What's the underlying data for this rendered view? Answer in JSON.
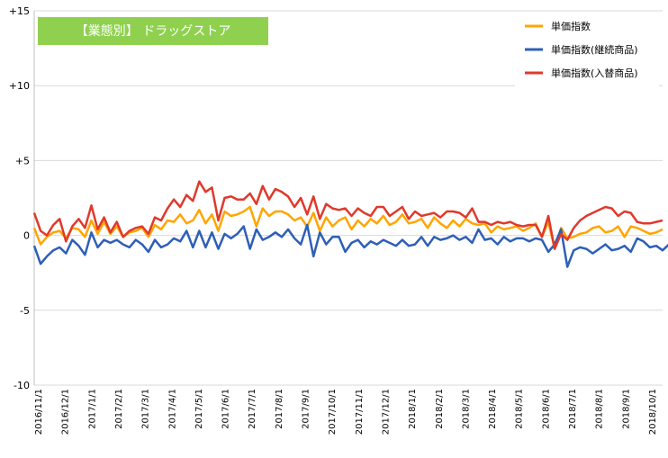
{
  "chart_data": {
    "type": "line",
    "title": "【業態別】 ドラッグストア",
    "title_bg": "#8fd14f",
    "ylim": [
      -10,
      15
    ],
    "yticks": [
      15,
      10,
      5,
      0,
      -5,
      -10
    ],
    "ytick_labels": [
      "+15",
      "+10",
      "+5",
      "0",
      "-5",
      "-10"
    ],
    "grid": "horizontal",
    "legend_position": "top-right",
    "xtick_labels": [
      "2016/11/1",
      "2016/12/1",
      "2017/1/1",
      "2017/2/1",
      "2017/3/1",
      "2017/4/1",
      "2017/5/1",
      "2017/6/1",
      "2017/7/1",
      "2017/8/1",
      "2017/9/1",
      "2017/10/1",
      "2017/11/1",
      "2017/12/1",
      "2018/1/1",
      "2018/2/1",
      "2018/3/1",
      "2018/4/1",
      "2018/5/1",
      "2018/6/1",
      "2018/7/1",
      "2018/8/1",
      "2018/9/1",
      "2018/10/1"
    ],
    "series": [
      {
        "name": "単価指数",
        "color": "#ffa500",
        "values": [
          0.5,
          -0.6,
          -0.1,
          0.2,
          0.3,
          -0.2,
          0.5,
          0.4,
          -0.1,
          1.0,
          0.1,
          0.9,
          0.1,
          0.6,
          -0.1,
          0.2,
          0.3,
          0.5,
          -0.1,
          0.7,
          0.4,
          1.0,
          0.9,
          1.4,
          0.8,
          1.0,
          1.7,
          0.8,
          1.4,
          0.3,
          1.6,
          1.3,
          1.4,
          1.6,
          1.9,
          0.6,
          1.8,
          1.3,
          1.6,
          1.6,
          1.4,
          1.0,
          1.2,
          0.6,
          1.5,
          0.3,
          1.2,
          0.6,
          1.0,
          1.2,
          0.4,
          1.0,
          0.6,
          1.1,
          0.8,
          1.3,
          0.7,
          0.9,
          1.4,
          0.8,
          0.9,
          1.1,
          0.5,
          1.2,
          0.8,
          0.5,
          1.0,
          0.6,
          1.1,
          0.8,
          0.7,
          0.8,
          0.2,
          0.6,
          0.4,
          0.5,
          0.6,
          0.3,
          0.5,
          0.8,
          -0.1,
          0.9,
          -0.9,
          0.5,
          -0.2,
          -0.1,
          0.1,
          0.2,
          0.5,
          0.6,
          0.2,
          0.3,
          0.6,
          -0.1,
          0.6,
          0.5,
          0.3,
          0.1,
          0.2,
          0.4
        ]
      },
      {
        "name": "単価指数(継続商品)",
        "color": "#2e5fb7",
        "values": [
          -0.7,
          -1.9,
          -1.4,
          -1.0,
          -0.8,
          -1.2,
          -0.3,
          -0.7,
          -1.3,
          0.2,
          -0.8,
          -0.3,
          -0.5,
          -0.3,
          -0.6,
          -0.8,
          -0.3,
          -0.6,
          -1.1,
          -0.3,
          -0.8,
          -0.6,
          -0.2,
          -0.4,
          0.3,
          -0.8,
          0.3,
          -0.8,
          0.2,
          -0.9,
          0.1,
          -0.2,
          0.1,
          0.6,
          -0.9,
          0.4,
          -0.3,
          -0.1,
          0.2,
          -0.1,
          0.4,
          -0.2,
          -0.6,
          0.7,
          -1.4,
          0.2,
          -0.6,
          -0.1,
          -0.1,
          -1.1,
          -0.5,
          -0.3,
          -0.8,
          -0.4,
          -0.6,
          -0.3,
          -0.5,
          -0.7,
          -0.3,
          -0.7,
          -0.6,
          -0.1,
          -0.7,
          -0.1,
          -0.3,
          -0.2,
          0.0,
          -0.3,
          -0.1,
          -0.5,
          0.4,
          -0.3,
          -0.2,
          -0.6,
          -0.1,
          -0.4,
          -0.2,
          -0.2,
          -0.4,
          -0.2,
          -0.3,
          -1.1,
          -0.6,
          0.4,
          -2.1,
          -1.0,
          -0.8,
          -0.9,
          -1.2,
          -0.9,
          -0.6,
          -1.0,
          -0.9,
          -0.7,
          -1.1,
          -0.2,
          -0.4,
          -0.8,
          -0.7,
          -1.0,
          -0.6
        ]
      },
      {
        "name": "単価指数(入替商品)",
        "color": "#e0392b",
        "values": [
          1.5,
          0.3,
          0.0,
          0.7,
          1.1,
          -0.4,
          0.6,
          1.1,
          0.5,
          2.0,
          0.4,
          1.2,
          0.2,
          0.9,
          -0.1,
          0.3,
          0.5,
          0.6,
          0.1,
          1.2,
          1.0,
          1.8,
          2.4,
          1.9,
          2.7,
          2.3,
          3.6,
          2.9,
          3.2,
          1.0,
          2.5,
          2.6,
          2.4,
          2.4,
          2.8,
          2.1,
          3.3,
          2.4,
          3.1,
          2.9,
          2.6,
          1.9,
          2.5,
          1.4,
          2.6,
          1.1,
          2.1,
          1.8,
          1.7,
          1.8,
          1.3,
          1.8,
          1.5,
          1.3,
          1.9,
          1.9,
          1.3,
          1.6,
          1.9,
          1.1,
          1.6,
          1.3,
          1.4,
          1.5,
          1.2,
          1.6,
          1.6,
          1.5,
          1.2,
          1.8,
          0.9,
          0.9,
          0.7,
          0.9,
          0.8,
          0.9,
          0.7,
          0.6,
          0.7,
          0.7,
          -0.1,
          1.3,
          -0.9,
          0.1,
          -0.3,
          0.5,
          1.0,
          1.3,
          1.5,
          1.7,
          1.9,
          1.8,
          1.3,
          1.6,
          1.5,
          0.9,
          0.8,
          0.8,
          0.9,
          1.0
        ]
      }
    ]
  }
}
